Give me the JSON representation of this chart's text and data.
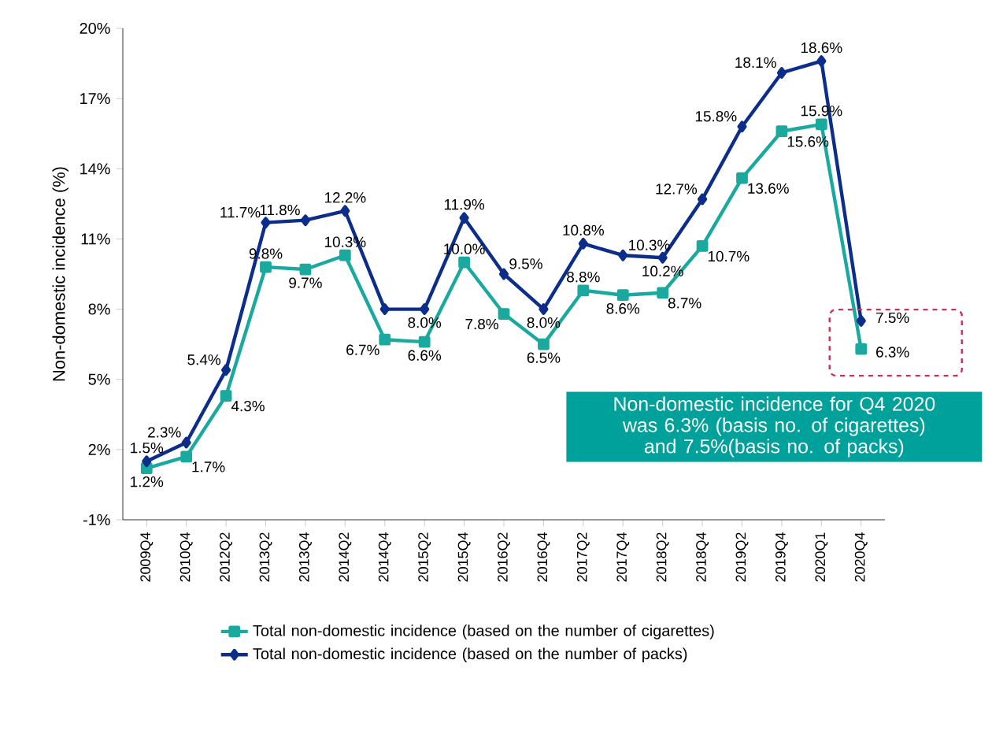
{
  "chart_data": {
    "type": "line",
    "ylabel": "Non-domestic incidence (%)",
    "categories": [
      "2009Q4",
      "2010Q4",
      "2012Q2",
      "2013Q2",
      "2013Q4",
      "2014Q2",
      "2014Q4",
      "2015Q2",
      "2015Q4",
      "2016Q2",
      "2016Q4",
      "2017Q2",
      "2017Q4",
      "2018Q2",
      "2018Q4",
      "2019Q2",
      "2019Q4",
      "2020Q1",
      "2020Q4"
    ],
    "series": [
      {
        "name": "Total non-domestic incidence (based on the number of cigarettes)",
        "color": "#1aa99f",
        "marker": "square",
        "values": [
          1.2,
          1.7,
          4.3,
          9.8,
          9.7,
          10.3,
          6.7,
          6.6,
          10.0,
          7.8,
          6.5,
          8.8,
          8.6,
          8.7,
          10.7,
          13.6,
          15.6,
          15.9,
          6.3
        ],
        "value_labels": [
          "1.2%",
          "1.7%",
          "4.3%",
          "9.8%",
          "9.7%",
          "10.3%",
          "6.7%",
          "6.6%",
          "10.0%",
          "7.8%",
          "6.5%",
          "8.8%",
          "8.6%",
          "8.7%",
          "10.7%",
          "13.6%",
          "15.6%",
          "15.9%",
          "6.3%"
        ]
      },
      {
        "name": "Total non-domestic incidence (based on the number of packs)",
        "color": "#0c2d8a",
        "marker": "diamond",
        "values": [
          1.5,
          2.3,
          5.4,
          11.7,
          11.8,
          12.2,
          8.0,
          8.0,
          11.9,
          9.5,
          8.0,
          10.8,
          10.3,
          10.2,
          12.7,
          15.8,
          18.1,
          18.6,
          7.5
        ],
        "value_labels": [
          "1.5%",
          "2.3%",
          "5.4%",
          "11.7%",
          "11.8%",
          "12.2%",
          null,
          "8.0%",
          "11.9%",
          "9.5%",
          "8.0%",
          "10.8%",
          "10.3%",
          "10.2%",
          "12.7%",
          "15.8%",
          "18.1%",
          "18.6%",
          "7.5%"
        ]
      }
    ],
    "ylim": [
      -1,
      20
    ],
    "yticks": [
      {
        "value": -1,
        "label": "-1%"
      },
      {
        "value": 2,
        "label": "2%"
      },
      {
        "value": 5,
        "label": "5%"
      },
      {
        "value": 8,
        "label": "8%"
      },
      {
        "value": 11,
        "label": "11%"
      },
      {
        "value": 14,
        "label": "14%"
      },
      {
        "value": 17,
        "label": "17%"
      },
      {
        "value": 20,
        "label": "20%"
      }
    ],
    "grid": false,
    "legend": "bottom",
    "annotations": [
      {
        "text": "Non-domestic incidence for Q4 2020 was 6.3% (basis no. of cigarettes) and 7.5%(basis no. of packs)",
        "x": "2020Q4",
        "y": 6.3
      }
    ]
  }
}
